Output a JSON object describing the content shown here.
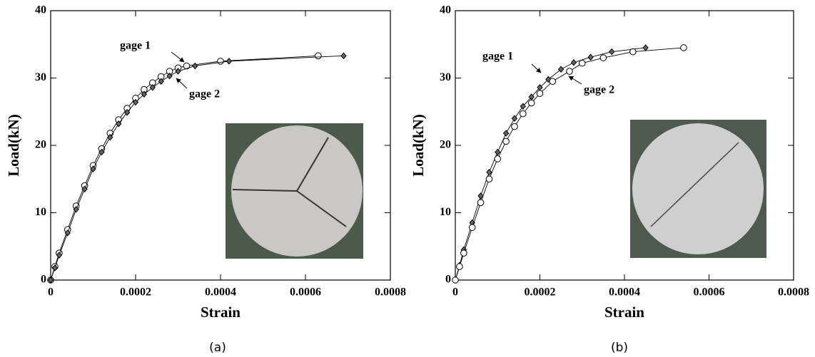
{
  "chart_data": [
    {
      "type": "line",
      "caption": "(a)",
      "xlabel": "Strain",
      "ylabel": "Load(kN)",
      "xlim": [
        0,
        0.0008
      ],
      "ylim": [
        0,
        40
      ],
      "xticks": [
        0,
        0.0002,
        0.0004,
        0.0006,
        0.0008
      ],
      "yticks": [
        0,
        10,
        20,
        30,
        40
      ],
      "annotations": [
        "gage 1",
        "gage 2"
      ],
      "series": [
        {
          "name": "gage 1",
          "marker": "circle",
          "color": "#000000",
          "x": [
            0,
            1e-05,
            2e-05,
            4e-05,
            6e-05,
            8e-05,
            0.0001,
            0.00012,
            0.00014,
            0.00016,
            0.00018,
            0.0002,
            0.00022,
            0.00024,
            0.00026,
            0.00028,
            0.0003,
            0.00032,
            0.0004,
            0.00063
          ],
          "values": [
            0,
            2,
            4,
            7.5,
            11,
            14,
            17,
            19.5,
            21.8,
            23.8,
            25.5,
            27,
            28.3,
            29.3,
            30.2,
            31,
            31.5,
            31.8,
            32.5,
            33.3
          ]
        },
        {
          "name": "gage 2",
          "marker": "diamond",
          "color": "#000000",
          "x": [
            0,
            1e-05,
            2e-05,
            4e-05,
            6e-05,
            8e-05,
            0.0001,
            0.00012,
            0.00014,
            0.00016,
            0.00018,
            0.0002,
            0.00022,
            0.00024,
            0.00026,
            0.00028,
            0.0003,
            0.00034,
            0.00042,
            0.00069
          ],
          "values": [
            0,
            1.8,
            3.7,
            7,
            10.5,
            13.5,
            16.5,
            19,
            21.2,
            23.2,
            24.9,
            26.4,
            27.6,
            28.6,
            29.5,
            30.3,
            31,
            31.8,
            32.5,
            33.3
          ]
        }
      ]
    },
    {
      "type": "line",
      "caption": "(b)",
      "xlabel": "Strain",
      "ylabel": "Load(kN)",
      "xlim": [
        0,
        0.0008
      ],
      "ylim": [
        0,
        40
      ],
      "xticks": [
        0,
        0.0002,
        0.0004,
        0.0006,
        0.0008
      ],
      "yticks": [
        0,
        10,
        20,
        30,
        40
      ],
      "annotations": [
        "gage 1",
        "gage 2"
      ],
      "series": [
        {
          "name": "gage 1",
          "marker": "diamond",
          "color": "#000000",
          "x": [
            0,
            1e-05,
            2e-05,
            4e-05,
            6e-05,
            8e-05,
            0.0001,
            0.00012,
            0.00014,
            0.00016,
            0.00018,
            0.0002,
            0.00022,
            0.00025,
            0.00028,
            0.00032,
            0.00037,
            0.00045
          ],
          "values": [
            0,
            2.2,
            4.5,
            8.5,
            12.5,
            16,
            19,
            21.8,
            24,
            25.8,
            27.2,
            28.6,
            29.8,
            31.3,
            32.3,
            33.1,
            33.9,
            34.5
          ]
        },
        {
          "name": "gage 2",
          "marker": "circle",
          "color": "#000000",
          "x": [
            0,
            1e-05,
            2e-05,
            4e-05,
            6e-05,
            8e-05,
            0.0001,
            0.00012,
            0.00014,
            0.00016,
            0.00018,
            0.0002,
            0.00023,
            0.00027,
            0.0003,
            0.00035,
            0.00042,
            0.00054
          ],
          "values": [
            0,
            2,
            4,
            7.8,
            11.5,
            15,
            18,
            20.6,
            22.8,
            24.7,
            26.3,
            27.7,
            29.5,
            31,
            32.2,
            33,
            33.9,
            34.5
          ]
        }
      ]
    }
  ]
}
